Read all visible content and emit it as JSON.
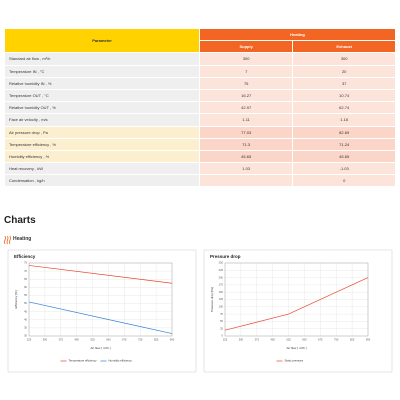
{
  "table": {
    "header": {
      "parameter": "Parameter",
      "group": "Heating",
      "columns": [
        "Supply",
        "Exhaust"
      ]
    },
    "rows": [
      [
        "Standard air flow , m³/h",
        "300",
        "300"
      ],
      [
        "Temperature IN , °C",
        "7",
        "20"
      ],
      [
        "Relative humidity IN , %",
        "75",
        "37"
      ],
      [
        "Temperature OUT , °C",
        "16.27",
        "10.74"
      ],
      [
        "Relative humidity OUT , %",
        "42.97",
        "62.74"
      ],
      [
        "Face air velocity , m/s",
        "1.11",
        "1.16"
      ],
      [
        "Air pressure drop , Pa",
        "77.03",
        "82.69"
      ],
      [
        "Temperature efficiency , %",
        "71.3",
        "71.24"
      ],
      [
        "Humidity efficiency , %",
        "45.65",
        "45.65"
      ],
      [
        "Heat recovery , kW",
        "1.03",
        "-1.03"
      ],
      [
        "Condensation , kg/h",
        null,
        "0"
      ]
    ]
  },
  "charts_heading": "Charts",
  "section": "Heating",
  "chart_data": [
    {
      "type": "line",
      "title": "Efficiency",
      "x_label": "Air flow [ m³/h ]",
      "y_label": "Efficiency [%]",
      "x": [
        225,
        900
      ],
      "series": [
        {
          "name": "Temperature efficiency",
          "color": "#e8472b",
          "values": [
            73.5,
            62.5
          ]
        },
        {
          "name": "Humidity efficiency",
          "color": "#2f7fd8",
          "values": [
            51,
            31.5
          ]
        }
      ],
      "xlim": [
        225,
        900
      ],
      "xticks": [
        225,
        300,
        375,
        450,
        525,
        600,
        675,
        750,
        825,
        900
      ],
      "ylim": [
        30,
        75
      ],
      "yticks": [
        30,
        35,
        40,
        45,
        50,
        55,
        60,
        65,
        70,
        75
      ],
      "grid": true
    },
    {
      "type": "line",
      "title": "Pressure drop",
      "x_label": "Air flow [ m³/h ]",
      "y_label": "Pressure drop [Pa]",
      "x": [
        225,
        525,
        900
      ],
      "series": [
        {
          "name": "Static pressure",
          "color": "#e8472b",
          "values": [
            20,
            75,
            200
          ]
        }
      ],
      "xlim": [
        225,
        900
      ],
      "xticks": [
        225,
        300,
        375,
        450,
        525,
        600,
        675,
        750,
        825,
        900
      ],
      "ylim": [
        0,
        250
      ],
      "yticks": [
        0,
        25,
        50,
        75,
        100,
        125,
        150,
        175,
        200,
        225,
        250
      ],
      "grid": true
    }
  ]
}
